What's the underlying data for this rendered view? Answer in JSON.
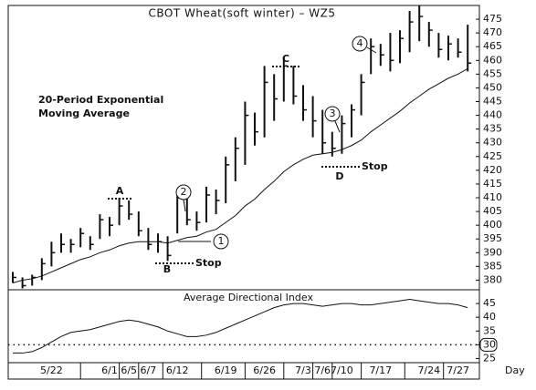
{
  "chart_data": [
    {
      "type": "ohlc",
      "title": "CBOT Wheat(soft winter) – WZ5",
      "x_label": "Day",
      "categories": [
        null,
        null,
        null,
        null,
        "5/22",
        null,
        null,
        null,
        null,
        null,
        "6/1",
        null,
        "6/5",
        null,
        "6/7",
        null,
        null,
        "6/12",
        null,
        null,
        null,
        null,
        "6/19",
        null,
        null,
        null,
        "6/26",
        null,
        null,
        null,
        "7/3",
        null,
        "7/6",
        null,
        "7/10",
        null,
        null,
        null,
        "7/17",
        null,
        null,
        null,
        null,
        "7/24",
        null,
        null,
        "7/27",
        null
      ],
      "high": [
        383,
        381,
        382,
        388,
        394,
        397,
        395,
        399,
        396,
        404,
        403,
        410,
        409,
        405,
        399,
        397,
        396,
        412,
        410,
        405,
        414,
        413,
        425,
        432,
        445,
        441,
        458,
        455,
        461,
        458,
        451,
        447,
        442,
        434,
        440,
        444,
        455,
        468,
        466,
        470,
        471,
        478,
        480,
        474,
        470,
        469,
        468,
        473
      ],
      "low": [
        379,
        377,
        378,
        380,
        385,
        390,
        390,
        392,
        391,
        395,
        396,
        400,
        402,
        396,
        391,
        390,
        387,
        397,
        400,
        398,
        401,
        404,
        408,
        416,
        422,
        429,
        432,
        438,
        445,
        444,
        438,
        432,
        426,
        425,
        426,
        432,
        440,
        455,
        458,
        456,
        459,
        463,
        467,
        465,
        461,
        460,
        461,
        456
      ],
      "close": [
        381,
        378,
        381,
        386,
        390,
        393,
        393,
        397,
        393,
        402,
        400,
        407,
        404,
        398,
        393,
        394,
        389,
        410,
        402,
        401,
        411,
        409,
        422,
        428,
        440,
        434,
        452,
        446,
        458,
        447,
        442,
        438,
        430,
        428,
        437,
        442,
        452,
        465,
        462,
        460,
        468,
        474,
        476,
        471,
        464,
        466,
        463,
        459
      ],
      "ema": [
        379,
        380,
        380.5,
        381.5,
        383,
        384.5,
        386,
        387.5,
        388.5,
        390,
        391,
        392.5,
        393.5,
        394,
        394,
        394,
        393.5,
        394.5,
        395.5,
        396,
        397.5,
        398.5,
        401,
        403.5,
        407,
        409.5,
        413,
        416,
        419.5,
        422,
        424,
        425.5,
        426,
        426.5,
        427.5,
        429,
        431,
        434,
        436.5,
        439,
        441.5,
        444.5,
        447,
        449.5,
        451.5,
        453.5,
        455,
        457
      ],
      "ema_label": [
        "20-Period Exponential",
        "Moving Average"
      ],
      "color": "#111111",
      "ylim": [
        376.5,
        480
      ],
      "yticks": [
        380,
        385,
        390,
        395,
        400,
        405,
        410,
        415,
        420,
        425,
        430,
        435,
        440,
        445,
        450,
        455,
        460,
        465,
        470,
        475
      ],
      "annotations": [
        "A",
        "B",
        "C",
        "D",
        "Stop",
        "Stop",
        "1",
        "2",
        "3",
        "4"
      ]
    },
    {
      "type": "line",
      "title": "Average Directional Index",
      "values": [
        27,
        27,
        27.5,
        29,
        31,
        33,
        34.5,
        35,
        35.5,
        36.5,
        37.5,
        38.5,
        39,
        38.5,
        37.5,
        36.5,
        35,
        34,
        33,
        33,
        33.5,
        34.5,
        36,
        37.5,
        39,
        40.5,
        42,
        43.5,
        44.5,
        45,
        45,
        44.5,
        44,
        44.5,
        45,
        45,
        44.5,
        44.5,
        45,
        45.5,
        46,
        46.5,
        46,
        45.5,
        45,
        45,
        44.5,
        43.5
      ],
      "color": "#111111",
      "ylim": [
        23.5,
        50
      ],
      "yticks": [
        25,
        30,
        35,
        40,
        45
      ],
      "reference_line": 30
    }
  ]
}
